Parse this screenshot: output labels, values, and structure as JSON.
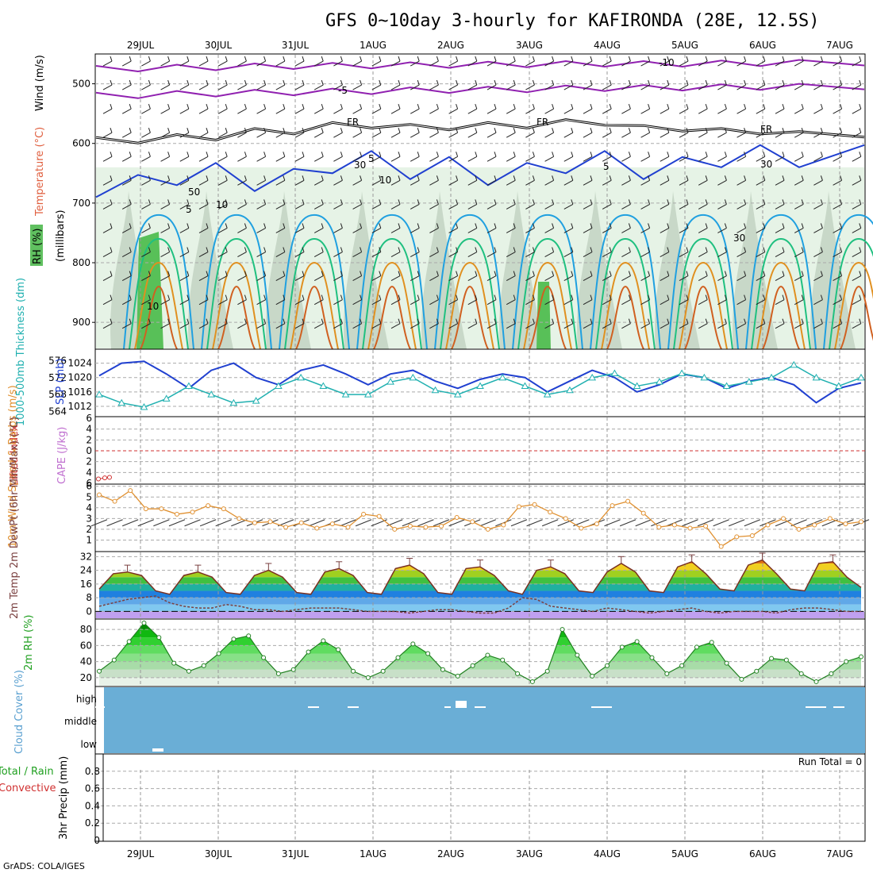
{
  "title": "GFS 0~10day 3-hourly for KAFIRONDA (28E, 12.5S)",
  "credit": "GrADS: COLA/IGES",
  "dates": [
    "29JUL",
    "30JUL",
    "31JUL",
    "1AUG",
    "2AUG",
    "3AUG",
    "4AUG",
    "5AUG",
    "6AUG",
    "7AUG"
  ],
  "colors": {
    "purple": "#9020b0",
    "black": "#000000",
    "blue_dark": "#2040d0",
    "blue_light": "#20a0e0",
    "teal": "#20c080",
    "orange": "#e09020",
    "orange_dark": "#d06020",
    "magenta": "#d02080",
    "slp": "#2040d0",
    "thickness": "#20b0b0",
    "lifted": "#d03030",
    "cape": "#c070d0",
    "wind": "#e09030",
    "temp_fill_hot": "#e05010",
    "dewpt": "#7a4040",
    "rh_fill": "#20c020",
    "cloud": "#6aaed6"
  },
  "chart_data": [
    {
      "type": "heatmap",
      "panel": "upper-air",
      "ylabel": "(millibars)",
      "side_labels": [
        "Wind (m/s)",
        "Temperature (°C)",
        "RH (%)"
      ],
      "y_ticks": [
        500,
        600,
        700,
        800,
        900
      ],
      "ylim": [
        450,
        945
      ],
      "contour_labels": [
        "-10",
        "-5",
        "FR",
        "FR",
        "FR",
        "5",
        "5",
        "5",
        "10",
        "50",
        "30",
        "10",
        "30",
        "30",
        "10"
      ],
      "isotherms": [
        {
          "name": "-10",
          "levels": [
            470,
            468,
            466,
            465,
            464,
            463,
            462,
            462,
            461,
            460
          ]
        },
        {
          "name": "-5",
          "levels": [
            515,
            512,
            510,
            508,
            506,
            505,
            503,
            502,
            501,
            500
          ]
        },
        {
          "name": "0 (FR)",
          "levels": [
            590,
            585,
            575,
            565,
            568,
            565,
            560,
            570,
            575,
            580
          ]
        },
        {
          "name": "5",
          "levels": [
            690,
            670,
            680,
            650,
            660,
            670,
            650,
            660,
            640,
            640
          ]
        }
      ]
    },
    {
      "type": "line",
      "panel": "slp-thickness",
      "ylabel_left": "1000-500mb Thickness (dm)",
      "ylabel_right": "SLP (mb)",
      "y_ticks_thickness": [
        564,
        568,
        572,
        576
      ],
      "y_ticks_slp": [
        1012,
        1016,
        1020,
        1024
      ],
      "series": [
        {
          "name": "SLP (mb)",
          "values": [
            1020.5,
            1024,
            1024.5,
            1021,
            1017,
            1022,
            1024,
            1020,
            1018,
            1022,
            1023.5,
            1021,
            1018,
            1021,
            1022,
            1019,
            1017,
            1019.5,
            1021,
            1020,
            1016,
            1019,
            1022,
            1020,
            1016,
            1018,
            1021,
            1020,
            1017,
            1019,
            1020,
            1018,
            1013,
            1017,
            1018.5
          ]
        },
        {
          "name": "1000-500mb Thickness (dm)",
          "values": [
            568,
            566,
            565,
            567,
            570,
            568,
            566,
            566.5,
            570,
            572,
            570,
            568,
            568,
            571,
            572,
            569,
            568,
            570,
            572,
            570,
            568,
            569,
            572,
            573,
            570,
            571,
            573,
            572,
            570,
            571,
            572,
            575,
            572,
            570,
            572
          ]
        }
      ]
    },
    {
      "type": "line",
      "panel": "stability",
      "ylabel_left": "Lifted Index",
      "ylabel_right": "CAPE (J/kg)",
      "y_ticks": [
        -6,
        -4,
        -2,
        0,
        2,
        4,
        6
      ],
      "ylim": [
        -6,
        6
      ],
      "series": [
        {
          "name": "Lifted Index",
          "values": [
            5.2,
            5.0,
            4.9
          ]
        }
      ]
    },
    {
      "type": "line",
      "panel": "10m-wind",
      "ylabel": "10m Wind Speed & Barbs (m/s)",
      "y_ticks": [
        1,
        2,
        3,
        4,
        5,
        6
      ],
      "ylim": [
        0,
        6
      ],
      "series": [
        {
          "name": "10m Wind Speed",
          "values": [
            5.2,
            4.6,
            5.6,
            3.9,
            3.9,
            3.4,
            3.6,
            4.2,
            3.9,
            3.0,
            2.6,
            2.7,
            2.2,
            2.6,
            2.1,
            2.5,
            2.2,
            3.4,
            3.2,
            2.0,
            2.3,
            2.2,
            2.3,
            3.1,
            2.7,
            2.0,
            2.4,
            4.1,
            4.3,
            3.6,
            3.0,
            2.1,
            2.5,
            4.2,
            4.6,
            3.5,
            2.2,
            2.4,
            2.1,
            2.3,
            0.4,
            1.3,
            1.4,
            2.4,
            3.0,
            2.0,
            2.4,
            3.0,
            2.5,
            2.7
          ]
        }
      ]
    },
    {
      "type": "area",
      "panel": "2m-temp",
      "ylabel": "2m Temp 2m DewPt (6hr Min/Max) (°C)",
      "y_ticks": [
        0,
        8,
        16,
        24,
        32
      ],
      "ylim": [
        -4,
        34
      ],
      "series": [
        {
          "name": "2m Temp",
          "values": [
            13,
            22,
            23,
            21,
            12,
            10,
            21,
            23,
            20,
            11,
            10,
            21,
            24,
            20,
            11,
            10,
            23,
            25,
            21,
            11,
            10,
            25,
            27,
            22,
            11,
            10,
            25,
            26,
            21,
            12,
            10,
            24,
            26,
            22,
            12,
            11,
            23,
            28,
            23,
            12,
            11,
            26,
            29,
            22,
            13,
            12,
            27,
            30,
            22,
            13,
            12,
            28,
            29,
            20,
            14
          ]
        },
        {
          "name": "2m DewPt",
          "values": [
            3,
            5,
            7,
            8,
            9,
            5,
            3,
            2,
            2,
            4,
            3,
            1,
            1,
            0,
            1,
            2,
            2,
            2,
            1,
            0,
            0,
            0,
            -1,
            0,
            1,
            1,
            0,
            -1,
            -1,
            2,
            8,
            7,
            3,
            2,
            1,
            0,
            2,
            1,
            0,
            -1,
            0,
            1,
            2,
            0,
            -1,
            0,
            0,
            0,
            -1,
            1,
            2,
            2,
            1,
            0,
            0
          ]
        }
      ]
    },
    {
      "type": "area",
      "panel": "2m-rh",
      "ylabel": "2m RH (%)",
      "y_ticks": [
        20,
        40,
        60,
        80
      ],
      "ylim": [
        10,
        92
      ],
      "series": [
        {
          "name": "2m RH",
          "values": [
            28,
            42,
            65,
            88,
            70,
            38,
            28,
            35,
            50,
            68,
            72,
            45,
            25,
            30,
            52,
            66,
            55,
            28,
            20,
            28,
            45,
            62,
            50,
            30,
            22,
            35,
            48,
            42,
            25,
            15,
            28,
            80,
            48,
            22,
            35,
            58,
            65,
            45,
            25,
            35,
            58,
            64,
            38,
            18,
            28,
            44,
            42,
            25,
            15,
            25,
            40,
            46
          ]
        }
      ]
    },
    {
      "type": "heatmap",
      "panel": "cloud-cover",
      "ylabel": "Cloud Cover (%)",
      "levels": [
        "high",
        "middle",
        "low"
      ]
    },
    {
      "type": "bar",
      "panel": "precip",
      "ylabel": "3hr Precip (mm)",
      "side_labels": [
        "Total / Rain",
        "Convective"
      ],
      "y_ticks": [
        "0",
        "0.2",
        "0.4",
        "0.6",
        "0.8"
      ],
      "ylim": [
        0,
        1
      ],
      "run_total": "Run Total = 0",
      "values": []
    }
  ]
}
